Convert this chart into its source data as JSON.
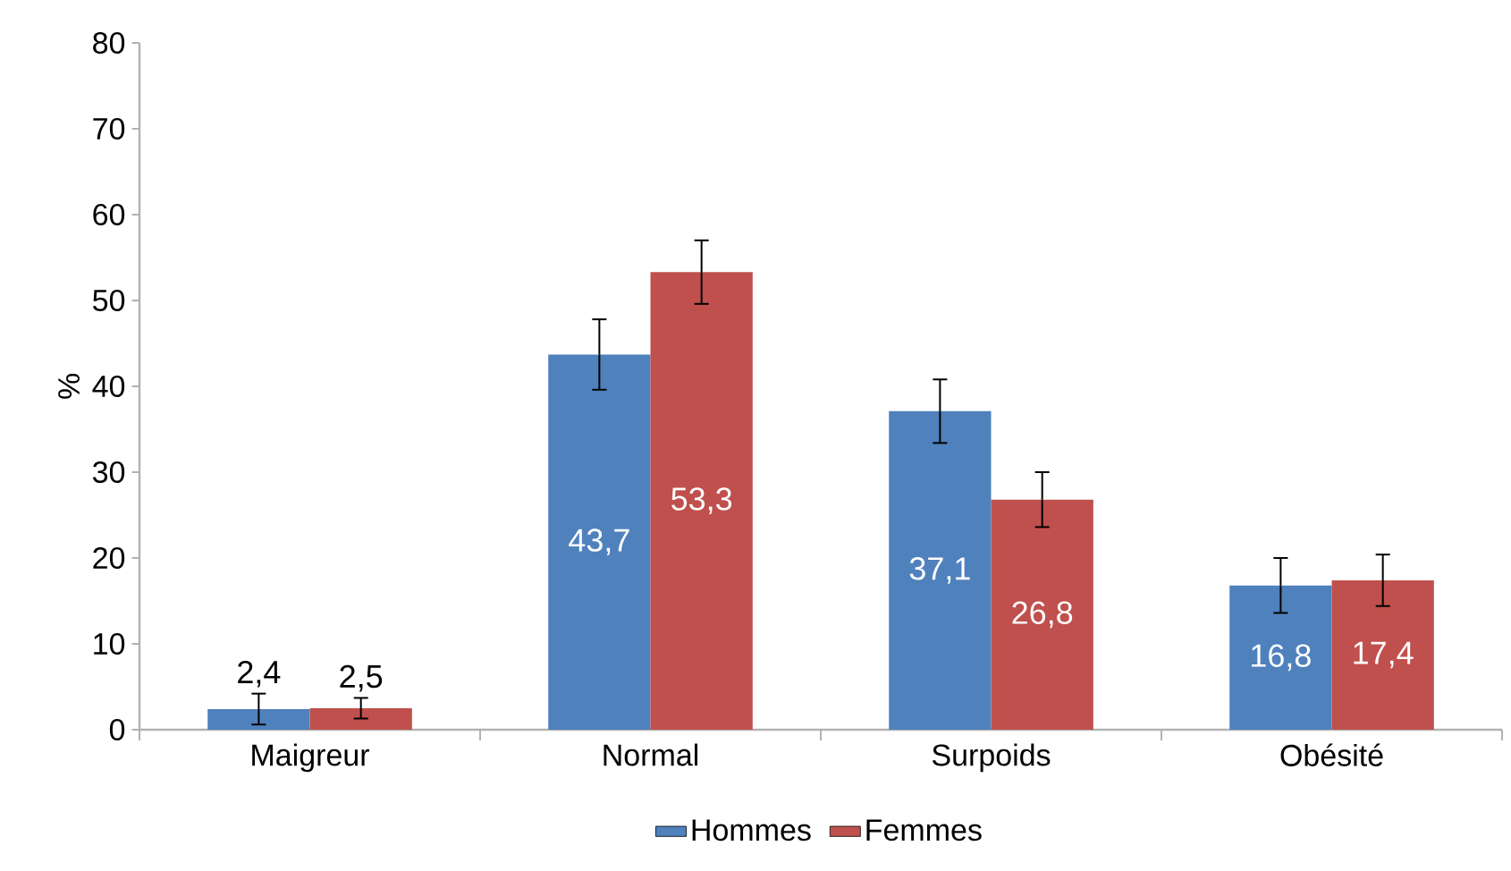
{
  "chart_data": {
    "type": "bar",
    "ylabel": "%",
    "categories": [
      "Maigreur",
      "Normal",
      "Surpoids",
      "Obésité"
    ],
    "series": [
      {
        "name": "Hommes",
        "color": "#4f81bd",
        "values": [
          2.4,
          43.7,
          37.1,
          16.8
        ],
        "errors": [
          1.8,
          4.1,
          3.7,
          3.2
        ],
        "value_labels": [
          "2,4",
          "43,7",
          "37,1",
          "16,8"
        ]
      },
      {
        "name": "Femmes",
        "color": "#c0504d",
        "values": [
          2.5,
          53.3,
          26.8,
          17.4
        ],
        "errors": [
          1.2,
          3.7,
          3.2,
          3.0
        ],
        "value_labels": [
          "2,5",
          "53,3",
          "26,8",
          "17,4"
        ]
      }
    ],
    "ylim": [
      0,
      80
    ],
    "yticks": [
      0,
      10,
      20,
      30,
      40,
      50,
      60,
      70,
      80
    ],
    "legend": "bottom"
  }
}
